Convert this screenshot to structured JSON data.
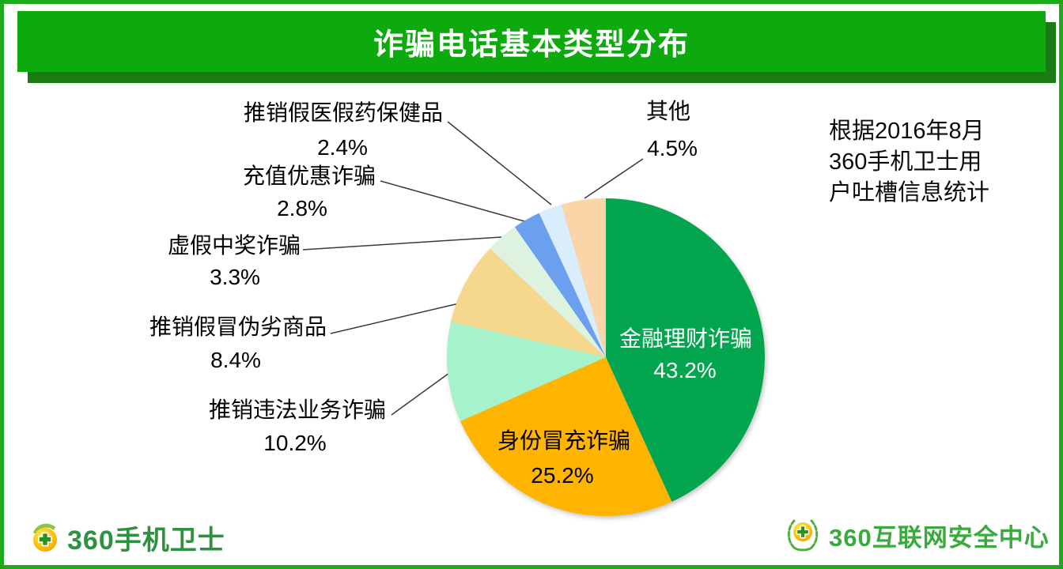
{
  "title": "诈骗电话基本类型分布",
  "note_text": "根据2016年8月\n360手机卫士用\n户吐槽信息统计",
  "footer": {
    "left_brand": "360手机卫士",
    "right_brand": "360互联网安全中心",
    "left_logo_icon": "shield-ball-cross-icon",
    "right_logo_icon": "laurel-ball-cross-icon"
  },
  "ui_colors": {
    "frame_border": "#1DA81D",
    "banner_green": "#0CAA0C",
    "banner_shadow_green": "#1B7A14",
    "brand_green_left": "#2E9140",
    "brand_green_right": "#3AAA3E"
  },
  "chart_data": {
    "type": "pie",
    "title": "诈骗电话基本类型分布",
    "start_angle_deg": 0,
    "direction": "clockwise",
    "legend": "none",
    "slices": [
      {
        "label": "金融理财诈骗",
        "value": 43.2,
        "pct_label": "43.2%",
        "color": "#03A64F",
        "label_placement": "inside",
        "label_color": "#FFFFFF"
      },
      {
        "label": "身份冒充诈骗",
        "value": 25.2,
        "pct_label": "25.2%",
        "color": "#FFB400",
        "label_placement": "inside",
        "label_color": "#000000"
      },
      {
        "label": "推销违法业务诈骗",
        "value": 10.2,
        "pct_label": "10.2%",
        "color": "#A6F2CB",
        "label_placement": "outside",
        "label_color": "#000000"
      },
      {
        "label": "推销假冒伪劣商品",
        "value": 8.4,
        "pct_label": "8.4%",
        "color": "#F5D88D",
        "label_placement": "outside",
        "label_color": "#000000"
      },
      {
        "label": "虚假中奖诈骗",
        "value": 3.3,
        "pct_label": "3.3%",
        "color": "#DDF3E0",
        "label_placement": "outside",
        "label_color": "#000000"
      },
      {
        "label": "充值优惠诈骗",
        "value": 2.8,
        "pct_label": "2.8%",
        "color": "#6BA0EE",
        "label_placement": "outside",
        "label_color": "#000000"
      },
      {
        "label": "推销假医假药保健品",
        "value": 2.4,
        "pct_label": "2.4%",
        "color": "#D9EDFC",
        "label_placement": "outside",
        "label_color": "#000000"
      },
      {
        "label": "其他",
        "value": 4.5,
        "pct_label": "4.5%",
        "color": "#FBD5A7",
        "label_placement": "outside",
        "label_color": "#000000"
      }
    ]
  }
}
